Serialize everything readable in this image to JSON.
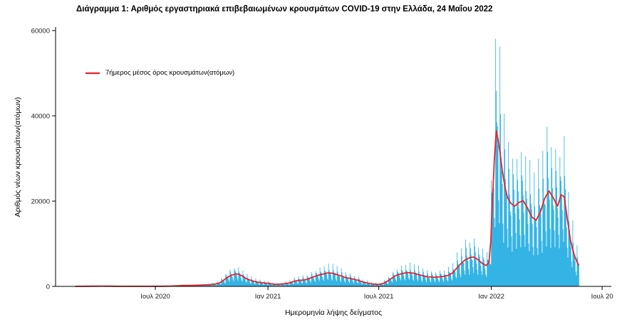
{
  "colors": {
    "bar": "#34b4e4",
    "avg_line": "#e8222a",
    "axis": "#000000",
    "tick_text": "#1a1a1a"
  },
  "chart_data": {
    "type": "bar",
    "title": "Διάγραμμα 1: Αριθμός εργαστηριακά επιβεβαιωμένων κρουσμάτων COVID-19 στην Ελλάδα, 24 Μαΐου 2022",
    "xlabel": "Ημερομηνία λήψης δείγματος",
    "ylabel": "Αριθμός νέων κρουσμάτων(ατόμων)",
    "legend": [
      {
        "label": "7ήμερος μέσος όρος κρουσμάτων(ατόμων)",
        "type": "line"
      }
    ],
    "ylim": [
      0,
      62000
    ],
    "y_ticks": [
      0,
      20000,
      40000,
      60000
    ],
    "x_ticks": [
      {
        "label": "Ιουλ 2020",
        "day": 151
      },
      {
        "label": "Ιαν 2021",
        "day": 335
      },
      {
        "label": "Ιουλ 2021",
        "day": 516
      },
      {
        "label": "Ιαν 2022",
        "day": 700
      },
      {
        "label": "Ιουλ 20",
        "day": 881
      }
    ],
    "day_range": [
      -12,
      896
    ],
    "day_zero_date": "2020-02-01",
    "data_start_day": 20,
    "data_end_day": 843,
    "weekday_pattern": [
      1.65,
      1.3,
      1.12,
      1.0,
      0.88,
      0.6,
      0.45
    ],
    "max_daily_value": 60200,
    "avg_series": [
      [
        20,
        5
      ],
      [
        35,
        25
      ],
      [
        50,
        50
      ],
      [
        65,
        62
      ],
      [
        80,
        40
      ],
      [
        95,
        18
      ],
      [
        110,
        12
      ],
      [
        125,
        15
      ],
      [
        140,
        22
      ],
      [
        155,
        32
      ],
      [
        170,
        45
      ],
      [
        182,
        110
      ],
      [
        196,
        210
      ],
      [
        210,
        245
      ],
      [
        224,
        285
      ],
      [
        238,
        380
      ],
      [
        248,
        520
      ],
      [
        256,
        820
      ],
      [
        263,
        1500
      ],
      [
        270,
        2250
      ],
      [
        277,
        2700
      ],
      [
        284,
        2950
      ],
      [
        291,
        2600
      ],
      [
        298,
        1950
      ],
      [
        305,
        1500
      ],
      [
        312,
        1180
      ],
      [
        319,
        960
      ],
      [
        327,
        830
      ],
      [
        335,
        740
      ],
      [
        342,
        560
      ],
      [
        349,
        480
      ],
      [
        356,
        540
      ],
      [
        363,
        640
      ],
      [
        370,
        820
      ],
      [
        377,
        1150
      ],
      [
        384,
        1400
      ],
      [
        391,
        1460
      ],
      [
        398,
        1620
      ],
      [
        405,
        2000
      ],
      [
        412,
        2350
      ],
      [
        419,
        2700
      ],
      [
        426,
        2920
      ],
      [
        433,
        3150
      ],
      [
        440,
        3080
      ],
      [
        447,
        2800
      ],
      [
        454,
        2480
      ],
      [
        461,
        2100
      ],
      [
        468,
        1900
      ],
      [
        475,
        1680
      ],
      [
        482,
        1430
      ],
      [
        489,
        1080
      ],
      [
        496,
        840
      ],
      [
        503,
        620
      ],
      [
        510,
        490
      ],
      [
        517,
        460
      ],
      [
        524,
        720
      ],
      [
        531,
        1300
      ],
      [
        538,
        2000
      ],
      [
        545,
        2600
      ],
      [
        552,
        2920
      ],
      [
        559,
        3150
      ],
      [
        566,
        3200
      ],
      [
        573,
        3080
      ],
      [
        580,
        2800
      ],
      [
        587,
        2540
      ],
      [
        594,
        2300
      ],
      [
        601,
        2200
      ],
      [
        608,
        2150
      ],
      [
        615,
        2250
      ],
      [
        622,
        2360
      ],
      [
        629,
        2560
      ],
      [
        636,
        3100
      ],
      [
        643,
        4200
      ],
      [
        650,
        5300
      ],
      [
        657,
        6200
      ],
      [
        664,
        6700
      ],
      [
        671,
        6900
      ],
      [
        678,
        6300
      ],
      [
        685,
        5400
      ],
      [
        692,
        4900
      ],
      [
        696,
        5600
      ],
      [
        699,
        10500
      ],
      [
        702,
        21000
      ],
      [
        705,
        30000
      ],
      [
        708,
        36500
      ],
      [
        711,
        34500
      ],
      [
        714,
        31500
      ],
      [
        718,
        27000
      ],
      [
        722,
        23500
      ],
      [
        726,
        21000
      ],
      [
        731,
        19600
      ],
      [
        738,
        18800
      ],
      [
        745,
        19700
      ],
      [
        752,
        20100
      ],
      [
        759,
        18400
      ],
      [
        766,
        16300
      ],
      [
        773,
        15500
      ],
      [
        780,
        17400
      ],
      [
        787,
        20600
      ],
      [
        794,
        22400
      ],
      [
        801,
        20800
      ],
      [
        808,
        18800
      ],
      [
        814,
        21500
      ],
      [
        819,
        21000
      ],
      [
        824,
        16000
      ],
      [
        829,
        11000
      ],
      [
        834,
        8000
      ],
      [
        839,
        6000
      ],
      [
        843,
        4900
      ]
    ]
  }
}
